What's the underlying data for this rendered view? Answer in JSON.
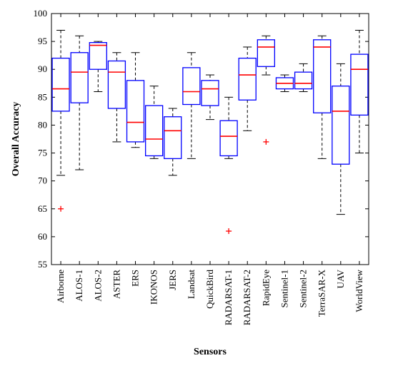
{
  "chart_data": {
    "type": "boxplot",
    "title": "",
    "xlabel": "Sensors",
    "ylabel": "Overall Accuracy",
    "ylim": [
      55,
      100
    ],
    "yticks": [
      55,
      60,
      65,
      70,
      75,
      80,
      85,
      90,
      95,
      100
    ],
    "grid": false,
    "colors": {
      "box": "#0000ff",
      "median": "#ff0000",
      "whisker": "#000000",
      "outlier": "#ff0000"
    },
    "categories": [
      "Airborne",
      "ALOS-1",
      "ALOS-2",
      "ASTER",
      "ERS",
      "IKONOS",
      "JERS",
      "Landsat",
      "QuickBird",
      "RADARSAT-1",
      "RADARSAT-2",
      "RapidEye",
      "Sentinel-1",
      "Sentinel-2",
      "TerraSAR-X",
      "UAV",
      "WorldView"
    ],
    "boxes": [
      {
        "min": 71,
        "q1": 82.5,
        "median": 86.5,
        "q3": 92,
        "max": 97,
        "outliers": [
          65
        ]
      },
      {
        "min": 72,
        "q1": 84,
        "median": 89.5,
        "q3": 93,
        "max": 96,
        "outliers": []
      },
      {
        "min": 86,
        "q1": 90,
        "median": 94.3,
        "q3": 94.8,
        "max": 95,
        "outliers": []
      },
      {
        "min": 77,
        "q1": 83,
        "median": 89.5,
        "q3": 91.5,
        "max": 93,
        "outliers": []
      },
      {
        "min": 76,
        "q1": 77,
        "median": 80.5,
        "q3": 88,
        "max": 93,
        "outliers": []
      },
      {
        "min": 74,
        "q1": 74.5,
        "median": 77.5,
        "q3": 83.5,
        "max": 87,
        "outliers": []
      },
      {
        "min": 71,
        "q1": 74,
        "median": 79,
        "q3": 81.5,
        "max": 83,
        "outliers": []
      },
      {
        "min": 74,
        "q1": 83.7,
        "median": 86,
        "q3": 90.3,
        "max": 93,
        "outliers": []
      },
      {
        "min": 81,
        "q1": 83.5,
        "median": 86.5,
        "q3": 88,
        "max": 89,
        "outliers": []
      },
      {
        "min": 74,
        "q1": 74.5,
        "median": 78,
        "q3": 80.8,
        "max": 85,
        "outliers": [
          61
        ]
      },
      {
        "min": 79,
        "q1": 84.5,
        "median": 89,
        "q3": 92,
        "max": 94,
        "outliers": []
      },
      {
        "min": 89,
        "q1": 90.5,
        "median": 94,
        "q3": 95.3,
        "max": 96,
        "outliers": [
          77
        ]
      },
      {
        "min": 86,
        "q1": 86.5,
        "median": 87.5,
        "q3": 88.5,
        "max": 89,
        "outliers": []
      },
      {
        "min": 86,
        "q1": 86.5,
        "median": 87.5,
        "q3": 89.5,
        "max": 91,
        "outliers": []
      },
      {
        "min": 74,
        "q1": 82.2,
        "median": 94,
        "q3": 95.3,
        "max": 96,
        "outliers": []
      },
      {
        "min": 64,
        "q1": 73,
        "median": 82.5,
        "q3": 87,
        "max": 91,
        "outliers": []
      },
      {
        "min": 75,
        "q1": 81.8,
        "median": 90,
        "q3": 92.7,
        "max": 97,
        "outliers": []
      }
    ]
  }
}
